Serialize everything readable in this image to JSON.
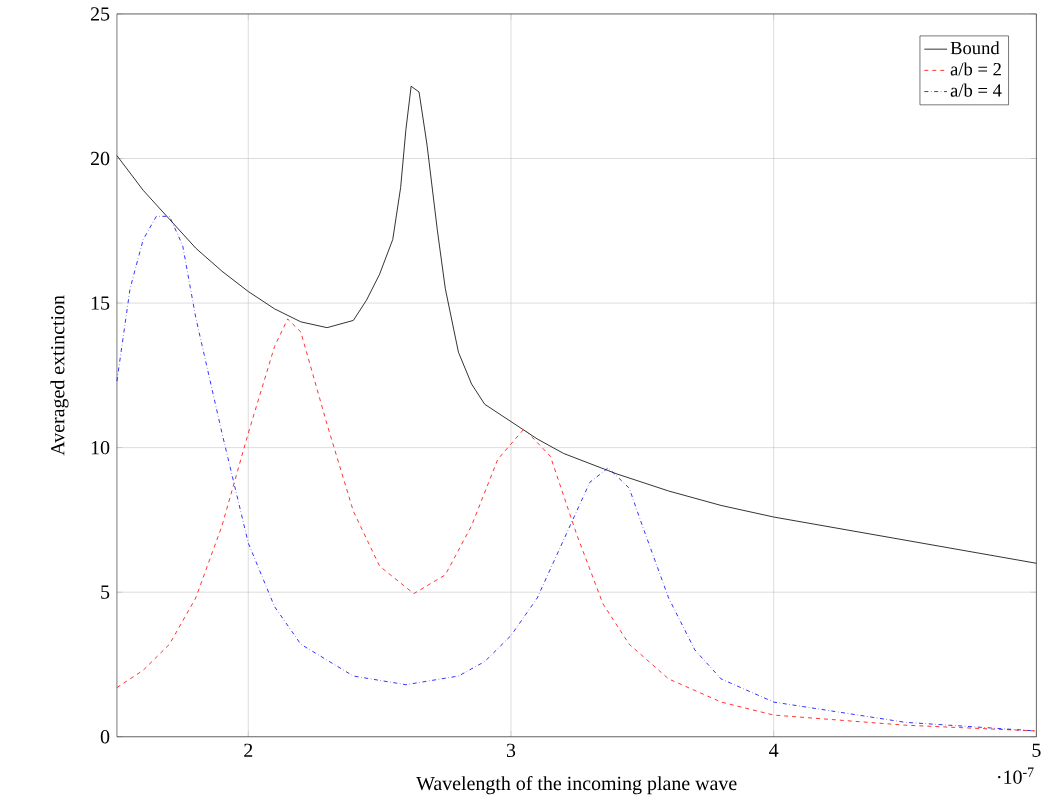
{
  "chart_data": {
    "type": "line",
    "xlabel": "Wavelength of the incoming plane wave",
    "ylabel": "Averaged extinction",
    "xlim": [
      1.5,
      5
    ],
    "ylim": [
      0,
      25
    ],
    "xticks": [
      2,
      3,
      4,
      5
    ],
    "yticks": [
      0,
      5,
      10,
      15,
      20,
      25
    ],
    "annotations": [
      "·10$^{-7}$"
    ],
    "grid": true,
    "legend": "top right",
    "marker": "none",
    "series": [
      {
        "name": "Bound",
        "color": "#000000",
        "line_style": "solid",
        "x": [
          1.5,
          1.6,
          1.7,
          1.8,
          1.9,
          2.0,
          2.1,
          2.2,
          2.3,
          2.4,
          2.45,
          2.5,
          2.55,
          2.58,
          2.6,
          2.62,
          2.65,
          2.68,
          2.72,
          2.75,
          2.8,
          2.85,
          2.9,
          3.0,
          3.1,
          3.2,
          3.4,
          3.6,
          3.8,
          4.0,
          4.5,
          5.0
        ],
        "values": [
          20.1,
          18.9,
          17.9,
          16.9,
          16.1,
          15.4,
          14.8,
          14.35,
          14.15,
          14.4,
          15.1,
          16.0,
          17.2,
          19.0,
          21.0,
          22.5,
          22.3,
          20.5,
          17.5,
          15.5,
          13.3,
          12.2,
          11.5,
          10.9,
          10.3,
          9.8,
          9.1,
          8.5,
          8.0,
          7.6,
          6.8,
          6.0
        ]
      },
      {
        "name": "a/b = 2",
        "color": "#ff0000",
        "line_style": "dashed",
        "x": [
          1.5,
          1.6,
          1.7,
          1.8,
          1.9,
          2.0,
          2.1,
          2.15,
          2.2,
          2.3,
          2.4,
          2.5,
          2.63,
          2.75,
          2.85,
          2.95,
          3.05,
          3.15,
          3.25,
          3.35,
          3.45,
          3.6,
          3.8,
          4.0,
          4.5,
          5.0
        ],
        "values": [
          1.7,
          2.3,
          3.2,
          4.8,
          7.3,
          10.5,
          13.5,
          14.45,
          14.0,
          10.8,
          7.8,
          5.9,
          4.95,
          5.6,
          7.3,
          9.6,
          10.65,
          9.7,
          7.0,
          4.6,
          3.2,
          2.0,
          1.2,
          0.75,
          0.4,
          0.2
        ]
      },
      {
        "name": "a/b = 4",
        "color": "#0000ff",
        "line_style": "dashdot",
        "x": [
          1.5,
          1.55,
          1.6,
          1.65,
          1.7,
          1.75,
          1.8,
          1.9,
          2.0,
          2.1,
          2.2,
          2.4,
          2.6,
          2.8,
          2.9,
          3.0,
          3.1,
          3.2,
          3.3,
          3.37,
          3.45,
          3.5,
          3.6,
          3.7,
          3.8,
          4.0,
          4.5,
          5.0
        ],
        "values": [
          12.3,
          15.5,
          17.2,
          18.0,
          18.0,
          17.0,
          14.5,
          10.5,
          6.7,
          4.5,
          3.2,
          2.1,
          1.8,
          2.1,
          2.6,
          3.5,
          4.8,
          6.8,
          8.8,
          9.3,
          8.6,
          7.3,
          4.8,
          3.0,
          2.0,
          1.2,
          0.5,
          0.2
        ]
      }
    ]
  }
}
